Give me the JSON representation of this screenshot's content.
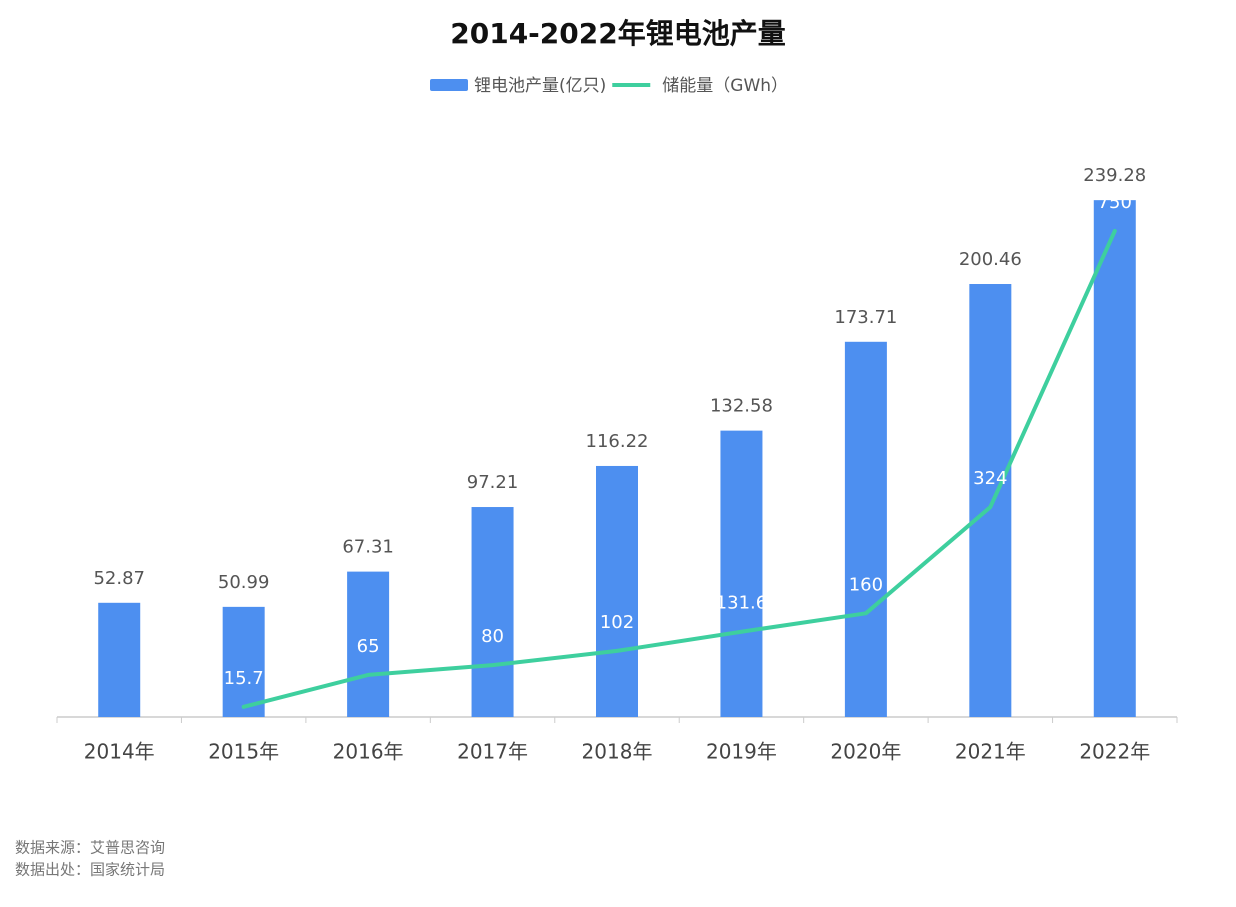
{
  "chart_data": {
    "type": "bar_line",
    "title": "2014-2022年锂电池产量",
    "categories": [
      "2014年",
      "2015年",
      "2016年",
      "2017年",
      "2018年",
      "2019年",
      "2020年",
      "2021年",
      "2022年"
    ],
    "series": [
      {
        "name": "锂电池产量(亿只)",
        "type": "bar",
        "color": "#4d8ff0",
        "values": [
          52.87,
          50.99,
          67.31,
          97.21,
          116.22,
          132.58,
          173.71,
          200.46,
          239.28
        ]
      },
      {
        "name": "储能量（GWh）",
        "type": "line",
        "axis": "y2",
        "color": "#3ecf9e",
        "values": [
          null,
          15.7,
          65,
          80,
          102,
          131.6,
          160,
          324,
          750
        ]
      }
    ],
    "ylim": [
      0,
      300
    ],
    "y2lim": [
      0,
      1000
    ],
    "annotations": [
      "数据来源：艾普思咨询",
      "数据出处：国家统计局"
    ]
  }
}
